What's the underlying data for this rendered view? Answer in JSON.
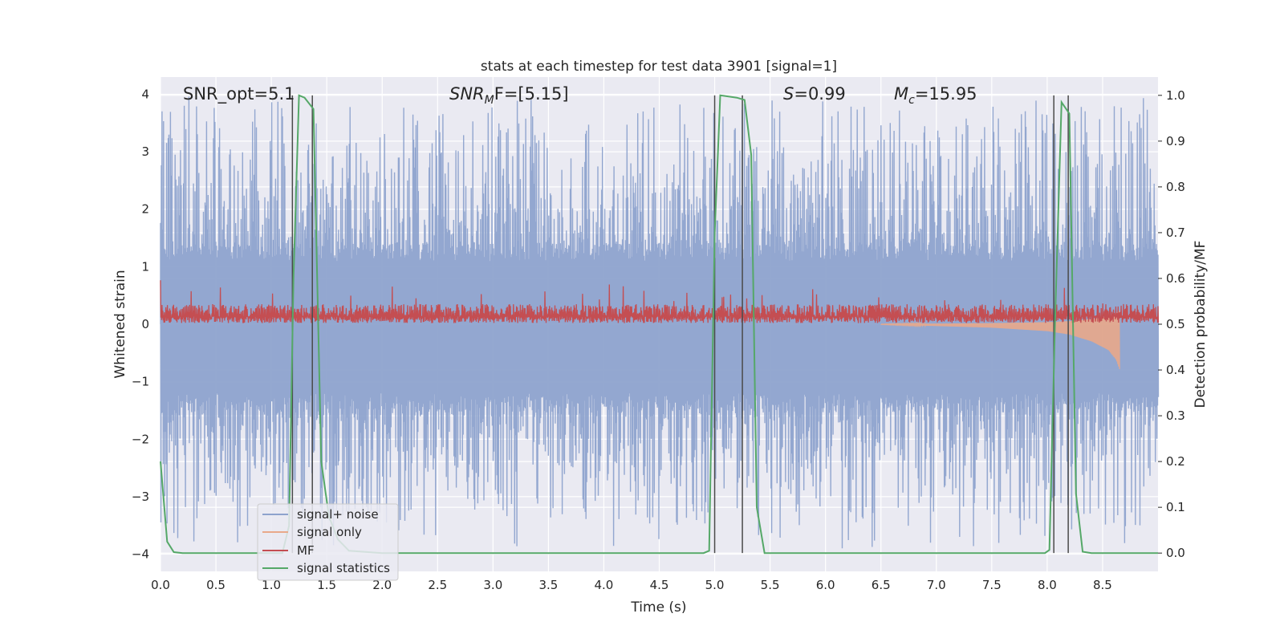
{
  "chart_data": {
    "type": "line",
    "title": "stats at each timestep for test data 3901 [signal=1]",
    "xlabel": "Time (s)",
    "ylabel": "Whitened strain",
    "y2label": "Detection probability/MF",
    "xlim": [
      0,
      9
    ],
    "ylim": [
      -4.3,
      4.3
    ],
    "y2lim": [
      -0.04,
      1.04
    ],
    "x_ticks": [
      0.0,
      0.5,
      1.0,
      1.5,
      2.0,
      2.5,
      3.0,
      3.5,
      4.0,
      4.5,
      5.0,
      5.5,
      6.0,
      6.5,
      7.0,
      7.5,
      8.0,
      8.5
    ],
    "x_tick_labels": [
      "0.0",
      "0.5",
      "1.0",
      "1.5",
      "2.0",
      "2.5",
      "3.0",
      "3.5",
      "4.0",
      "4.5",
      "5.0",
      "5.5",
      "6.0",
      "6.5",
      "7.0",
      "7.5",
      "8.0",
      "8.5"
    ],
    "y_ticks": [
      4,
      3,
      2,
      1,
      0,
      -1,
      -2,
      -3,
      -4
    ],
    "y_tick_labels": [
      "4",
      "3",
      "2",
      "1",
      "0",
      "−1",
      "−2",
      "−3",
      "−4"
    ],
    "y2_ticks": [
      1.0,
      0.9,
      0.8,
      0.7,
      0.6,
      0.5,
      0.4,
      0.3,
      0.2,
      0.1,
      0.0
    ],
    "y2_tick_labels": [
      "1.0",
      "0.9",
      "0.8",
      "0.7",
      "0.6",
      "0.5",
      "0.4",
      "0.3",
      "0.2",
      "0.1",
      "0.0"
    ],
    "grid": true,
    "legend_position": "lower-left",
    "annotations": {
      "snr_opt": "SNR_opt=5.1",
      "snr_mf_main": "SNR",
      "snr_mf_sub": "M",
      "snr_mf_rest": "F=[5.15]",
      "s_main": "S",
      "s_rest": "=0.99",
      "mc_main": "M",
      "mc_sub": "c",
      "mc_rest": "=15.95"
    },
    "series": [
      {
        "name": "signal+ noise",
        "color": "#8ea3cd"
      },
      {
        "name": "signal only",
        "color": "#e9a98a"
      },
      {
        "name": "MF",
        "color": "#c44e52"
      },
      {
        "name": "signal statistics",
        "color": "#55a868"
      }
    ],
    "signal_statistics": {
      "x": [
        0.0,
        0.06,
        0.12,
        0.2,
        1.1,
        1.16,
        1.2,
        1.25,
        1.3,
        1.38,
        1.45,
        1.52,
        1.6,
        1.7,
        2.0,
        4.9,
        4.95,
        5.0,
        5.05,
        5.2,
        5.27,
        5.33,
        5.38,
        5.45,
        5.6,
        7.98,
        8.02,
        8.07,
        8.13,
        8.2,
        8.26,
        8.32,
        8.4,
        9.0
      ],
      "y": [
        0.2,
        0.025,
        0.002,
        0.0,
        0.0,
        0.06,
        0.6,
        1.0,
        0.995,
        0.97,
        0.2,
        0.08,
        0.03,
        0.005,
        0.0,
        0.0,
        0.005,
        0.7,
        1.0,
        0.995,
        0.99,
        0.87,
        0.1,
        0.0,
        0.0,
        0.0,
        0.007,
        0.5,
        0.985,
        0.96,
        0.13,
        0.003,
        0.0,
        0.0
      ]
    },
    "detection_markers_x": [
      1.19,
      1.37,
      5.0,
      5.25,
      8.06,
      8.19
    ],
    "signal_only_envelope": {
      "x": [
        6.5,
        7.0,
        7.5,
        8.0,
        8.2,
        8.4,
        8.55,
        8.62,
        8.65
      ],
      "amplitude": [
        0.005,
        0.03,
        0.06,
        0.12,
        0.18,
        0.3,
        0.45,
        0.62,
        0.78
      ]
    },
    "noise_band": {
      "low": -1.2,
      "high": 1.1,
      "max": 4.0,
      "min": -3.9
    },
    "mf_band": {
      "low": 0.02,
      "high": 0.35,
      "max": 0.85
    }
  }
}
